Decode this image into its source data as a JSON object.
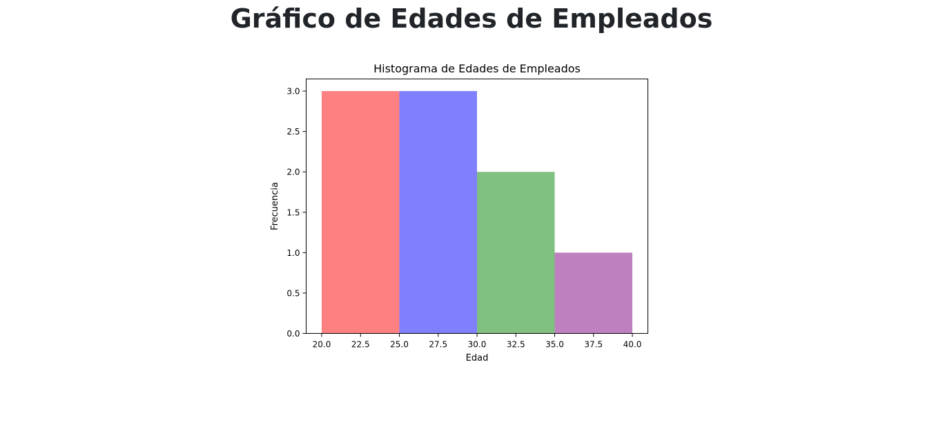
{
  "page": {
    "title": "Gráfico de Edades de Empleados"
  },
  "chart_data": {
    "type": "bar",
    "title": "Histograma de Edades de Empleados",
    "xlabel": "Edad",
    "ylabel": "Frecuencia",
    "bins": [
      {
        "start": 20,
        "end": 25,
        "value": 3,
        "color": "#ff8080"
      },
      {
        "start": 25,
        "end": 30,
        "value": 3,
        "color": "#8080ff"
      },
      {
        "start": 30,
        "end": 35,
        "value": 2,
        "color": "#80c080"
      },
      {
        "start": 35,
        "end": 40,
        "value": 1,
        "color": "#bf80bf"
      }
    ],
    "xlim": [
      19,
      41
    ],
    "ylim": [
      0,
      3.15
    ],
    "xticks": [
      "20.0",
      "22.5",
      "25.0",
      "27.5",
      "30.0",
      "32.5",
      "35.0",
      "37.5",
      "40.0"
    ],
    "yticks": [
      "0.0",
      "0.5",
      "1.0",
      "1.5",
      "2.0",
      "2.5",
      "3.0"
    ],
    "grid": false,
    "legend": "none"
  }
}
